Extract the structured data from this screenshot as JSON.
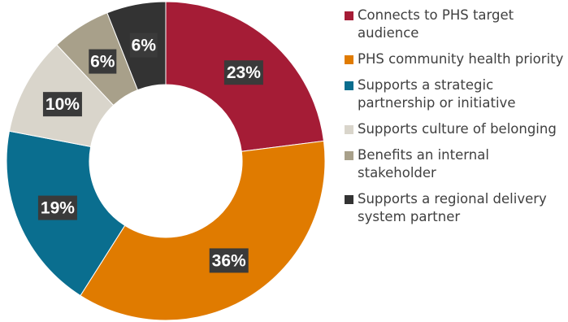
{
  "chart_data": {
    "type": "pie",
    "donut": true,
    "categories": [
      "Connects to PHS target audience",
      "PHS community health priority",
      "Supports a strategic partnership or initiative",
      "Supports culture of belonging",
      "Benefits an internal stakeholder",
      "Supports a regional delivery system partner"
    ],
    "values": [
      23,
      36,
      19,
      10,
      6,
      6
    ],
    "labels": [
      "23%",
      "36%",
      "19%",
      "10%",
      "6%",
      "6%"
    ],
    "unit": "%",
    "colors": [
      "#a51c36",
      "#e07b00",
      "#0a6e8f",
      "#d9d5cb",
      "#a8a08a",
      "#333333"
    ],
    "legend_position": "right"
  }
}
